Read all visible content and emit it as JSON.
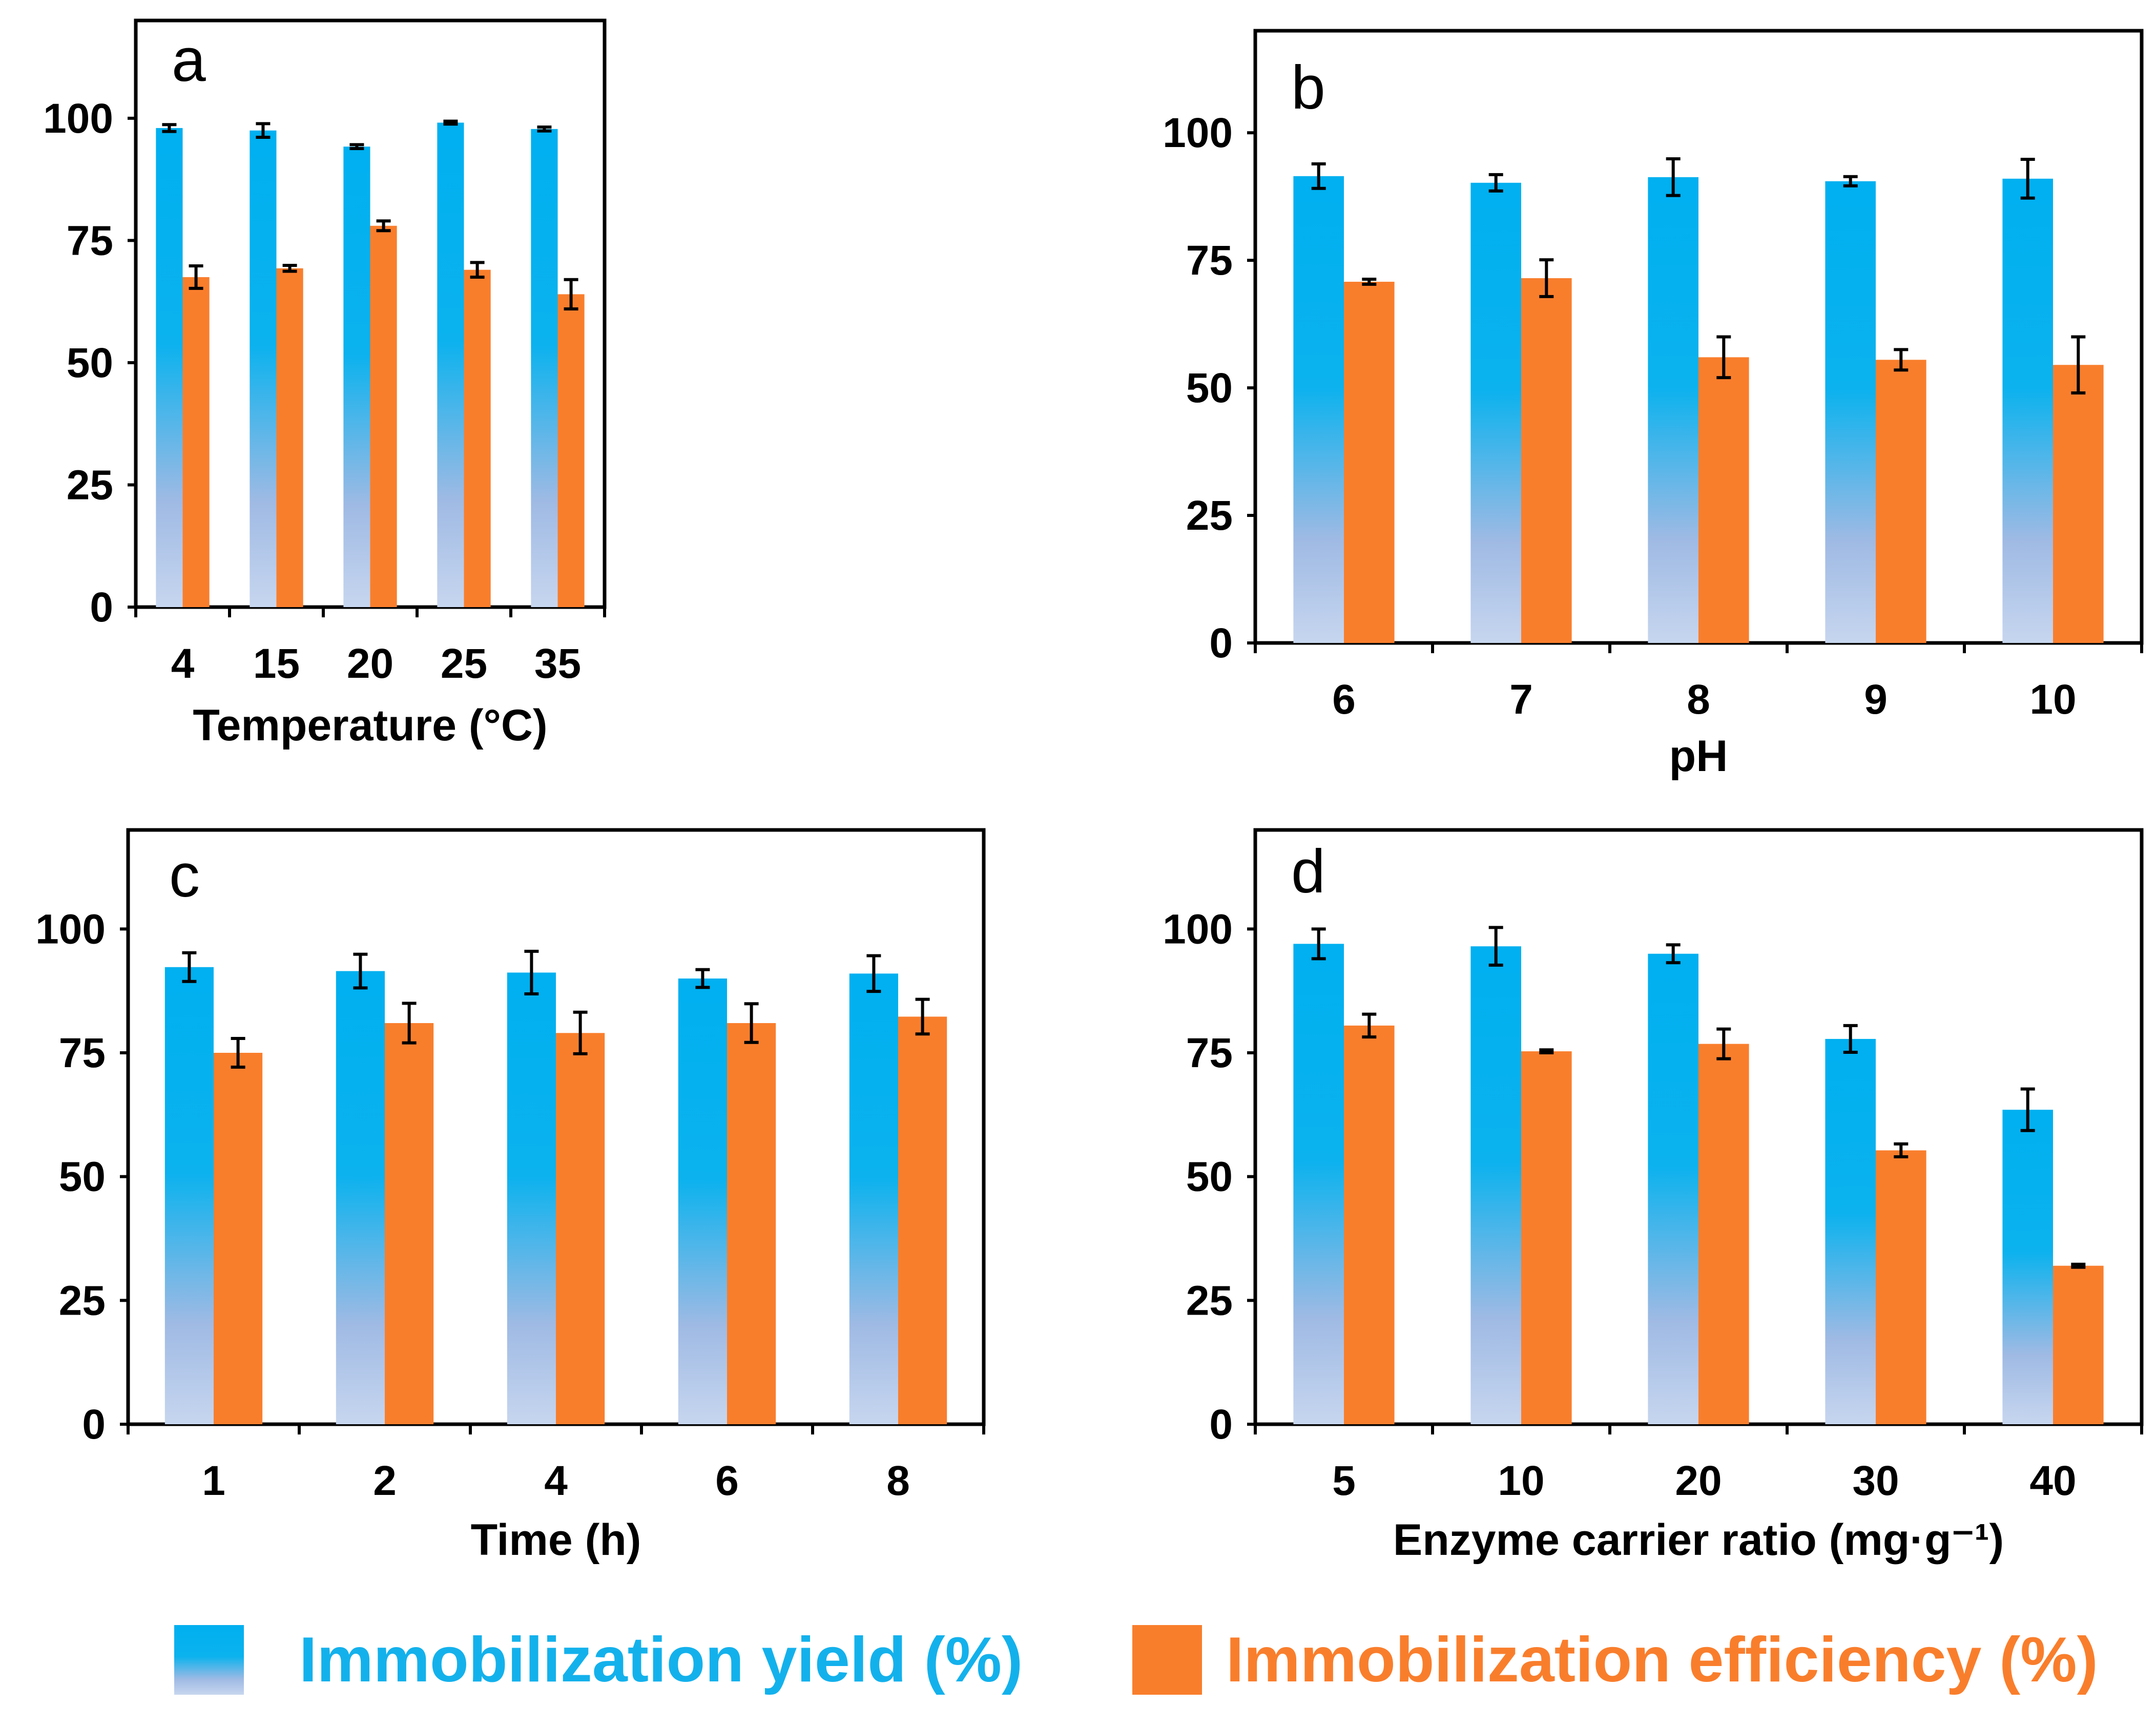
{
  "colors": {
    "yield_top": "#00b0f0",
    "yield_mid": "#0bb2ee",
    "yield_bottom": "#c7d6ef",
    "yield_lower": "#9fbae4",
    "efficiency": "#f97e2c",
    "yield_text": "#13b1ec",
    "efficiency_text": "#f97e2c",
    "axis": "#000000"
  },
  "legend": {
    "yield_label": "Immobilization yield (%)",
    "efficiency_label": "Immobilization efficiency (%)"
  },
  "chart_data": [
    {
      "type": "bar",
      "panel": "a",
      "xlabel": "Temperature (°C)",
      "ylabel": "",
      "ylim": [
        0,
        120
      ],
      "yticks": [
        "0",
        "25",
        "50",
        "75",
        "100"
      ],
      "categories": [
        "4",
        "15",
        "20",
        "25",
        "35"
      ],
      "series": [
        {
          "name": "Immobilization yield (%)",
          "values": [
            98,
            97.5,
            94.2,
            99.1,
            97.8
          ],
          "errors": [
            0.7,
            1.4,
            0.4,
            0.3,
            0.4
          ]
        },
        {
          "name": "Immobilization efficiency (%)",
          "values": [
            67.5,
            69.3,
            78,
            69,
            64
          ],
          "errors": [
            2.3,
            0.6,
            1.0,
            1.5,
            3.0
          ]
        }
      ]
    },
    {
      "type": "bar",
      "panel": "b",
      "xlabel": "pH",
      "ylabel": "",
      "ylim": [
        0,
        120
      ],
      "yticks": [
        "0",
        "25",
        "50",
        "75",
        "100"
      ],
      "categories": [
        "6",
        "7",
        "8",
        "9",
        "10"
      ],
      "series": [
        {
          "name": "Immobilization yield (%)",
          "values": [
            91.5,
            90.2,
            91.3,
            90.5,
            91
          ],
          "errors": [
            2.4,
            1.6,
            3.6,
            0.9,
            3.8
          ]
        },
        {
          "name": "Immobilization efficiency (%)",
          "values": [
            70.8,
            71.5,
            56,
            55.5,
            54.5
          ],
          "errors": [
            0.5,
            3.6,
            4.0,
            2.0,
            5.5
          ]
        }
      ]
    },
    {
      "type": "bar",
      "panel": "c",
      "xlabel": "Time (h)",
      "ylabel": "",
      "ylim": [
        0,
        120
      ],
      "yticks": [
        "0",
        "25",
        "50",
        "75",
        "100"
      ],
      "categories": [
        "1",
        "2",
        "4",
        "6",
        "8"
      ],
      "series": [
        {
          "name": "Immobilization yield (%)",
          "values": [
            92.3,
            91.5,
            91.2,
            90,
            91
          ],
          "errors": [
            2.9,
            3.4,
            4.3,
            1.8,
            3.6
          ]
        },
        {
          "name": "Immobilization efficiency (%)",
          "values": [
            75,
            81,
            79,
            81,
            82.3
          ],
          "errors": [
            2.9,
            4.0,
            4.2,
            3.9,
            3.5
          ]
        }
      ]
    },
    {
      "type": "bar",
      "panel": "d",
      "xlabel": "Enzyme carrier ratio (mg·g⁻¹)",
      "ylabel": "",
      "ylim": [
        0,
        120
      ],
      "yticks": [
        "0",
        "25",
        "50",
        "75",
        "100"
      ],
      "categories": [
        "5",
        "10",
        "20",
        "30",
        "40"
      ],
      "series": [
        {
          "name": "Immobilization yield (%)",
          "values": [
            97,
            96.5,
            95,
            77.8,
            63.5
          ],
          "errors": [
            3.0,
            3.8,
            1.8,
            2.7,
            4.2
          ]
        },
        {
          "name": "Immobilization efficiency (%)",
          "values": [
            80.5,
            75.3,
            76.8,
            55.3,
            32
          ],
          "errors": [
            2.3,
            0.3,
            3.0,
            1.3,
            0.3
          ]
        }
      ]
    }
  ]
}
